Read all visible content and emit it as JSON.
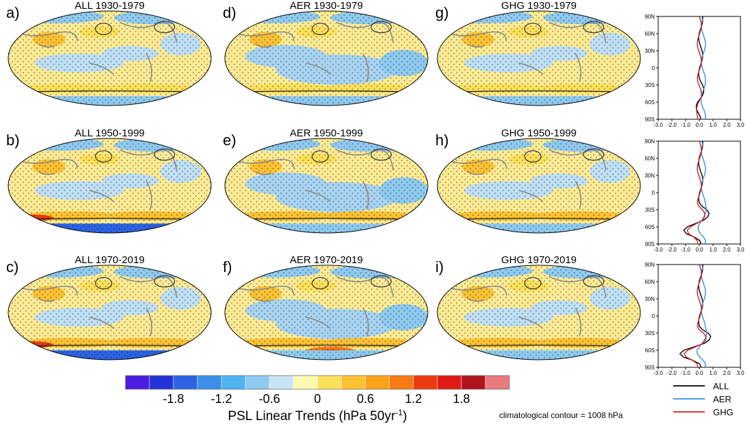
{
  "panels": [
    {
      "letter": "a)",
      "title": "ALL 1930-1979"
    },
    {
      "letter": "d)",
      "title": "AER 1930-1979"
    },
    {
      "letter": "g)",
      "title": "GHG 1930-1979"
    },
    {
      "letter": "b)",
      "title": "ALL 1950-1999"
    },
    {
      "letter": "e)",
      "title": "AER 1950-1999"
    },
    {
      "letter": "h)",
      "title": "GHG 1950-1999"
    },
    {
      "letter": "c)",
      "title": "ALL 1970-2019"
    },
    {
      "letter": "f)",
      "title": "AER 1970-2019"
    },
    {
      "letter": "i)",
      "title": "GHG 1970-2019"
    }
  ],
  "colorbar": {
    "colors": [
      "#4a1de0",
      "#2233d8",
      "#2b63e4",
      "#3d8ee8",
      "#4db3f2",
      "#8fcaf0",
      "#c9e4f6",
      "#fdfab0",
      "#fde15a",
      "#fdc233",
      "#f9a21a",
      "#f97a13",
      "#ee3a10",
      "#e01a16",
      "#b2141d",
      "#e77a7e"
    ],
    "tick_labels": [
      "-1.8",
      "-1.2",
      "-0.6",
      "0",
      "0.6",
      "1.2",
      "1.8"
    ],
    "label_main": "PSL Linear Trends (hPa 50yr",
    "label_sup": "-1",
    "label_end": ")"
  },
  "note": "climatological contour = 1008 hPa",
  "profile_axes": {
    "y_labels": [
      "90N",
      "60N",
      "30N",
      "0",
      "30S",
      "60S",
      "90S"
    ],
    "x_labels": [
      "-3.0",
      "-2.0",
      "-1.0",
      "0.0",
      "1.0",
      "2.0",
      "3.0"
    ]
  },
  "legend": [
    {
      "name": "ALL",
      "color": "#000000"
    },
    {
      "name": "AER",
      "color": "#3a8fd8"
    },
    {
      "name": "GHG",
      "color": "#d81e1e"
    }
  ]
}
